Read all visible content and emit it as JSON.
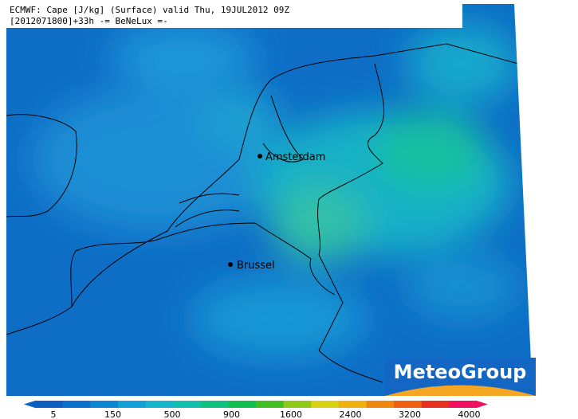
{
  "header": {
    "line1": "ECMWF: Cape [J/kg] (Surface) valid Thu, 19JUL2012 09Z",
    "line2": "[2012071800]+33h -= BeNeLux =-"
  },
  "cities": [
    {
      "name": "Amsterdam"
    },
    {
      "name": "Brussel"
    }
  ],
  "colorbar": {
    "colors": [
      "#0a5fc0",
      "#0a72cc",
      "#0a86d4",
      "#12a0d8",
      "#14b4cc",
      "#12c0b0",
      "#10c080",
      "#10c050",
      "#40c020",
      "#90c818",
      "#d8d010",
      "#f0b010",
      "#f08810",
      "#f06010",
      "#e83020",
      "#f01060"
    ],
    "ticks": [
      5,
      150,
      500,
      900,
      1600,
      2400,
      3200,
      4000
    ]
  },
  "logo": "MeteoGroup"
}
